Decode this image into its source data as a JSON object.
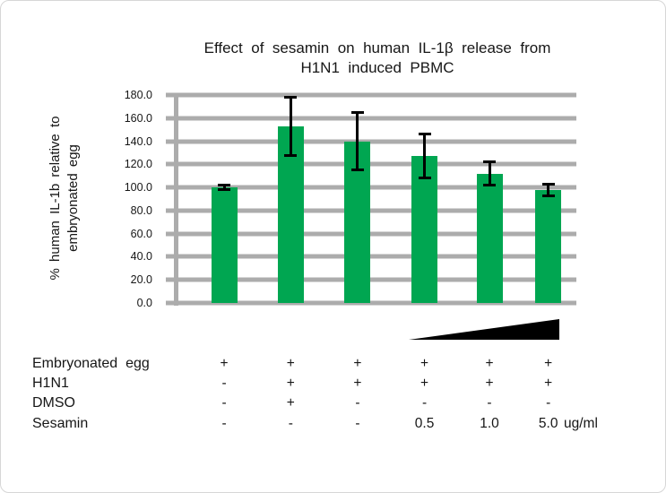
{
  "chart_data": {
    "type": "bar",
    "title": "Effect of sesamin on human IL-1β release from\nH1N1 induced PBMC",
    "ylabel": "% human IL-1b relative to\nembryonated egg",
    "xlabel": "",
    "ylim": [
      0,
      180
    ],
    "ytick_step": 20,
    "ytick_labels": [
      "0.0",
      "20.0",
      "40.0",
      "60.0",
      "80.0",
      "100.0",
      "120.0",
      "140.0",
      "160.0",
      "180.0"
    ],
    "grid": true,
    "legend": "none",
    "categories": [
      "Embryonated egg only",
      "H1N1 + DMSO",
      "H1N1",
      "H1N1 + sesamin 0.5 ug/ml",
      "H1N1 + sesamin 1.0 ug/ml",
      "H1N1 + sesamin 5.0 ug/ml"
    ],
    "values": [
      100,
      153,
      140,
      127,
      112,
      98
    ],
    "errors": [
      2,
      25,
      25,
      19,
      10,
      5
    ],
    "bar_color": "#00a651",
    "gridline_color": "#acacac",
    "axis_color": "#acacac",
    "error_bar_color": "#000000"
  },
  "annotation": {
    "gradient_triangle": "increasing sesamin concentration",
    "triangle_color": "#000000"
  },
  "condition_table": {
    "rows": [
      {
        "label": "Embryonated egg",
        "values": [
          "+",
          "+",
          "+",
          "+",
          "+",
          "+"
        ]
      },
      {
        "label": "H1N1",
        "values": [
          "-",
          "+",
          "+",
          "+",
          "+",
          "+"
        ]
      },
      {
        "label": "DMSO",
        "values": [
          "-",
          "+",
          "-",
          "-",
          "-",
          "-"
        ]
      },
      {
        "label": "Sesamin",
        "values": [
          "-",
          "-",
          "-",
          "0.5",
          "1.0",
          "5.0"
        ],
        "unit": "ug/ml"
      }
    ]
  }
}
